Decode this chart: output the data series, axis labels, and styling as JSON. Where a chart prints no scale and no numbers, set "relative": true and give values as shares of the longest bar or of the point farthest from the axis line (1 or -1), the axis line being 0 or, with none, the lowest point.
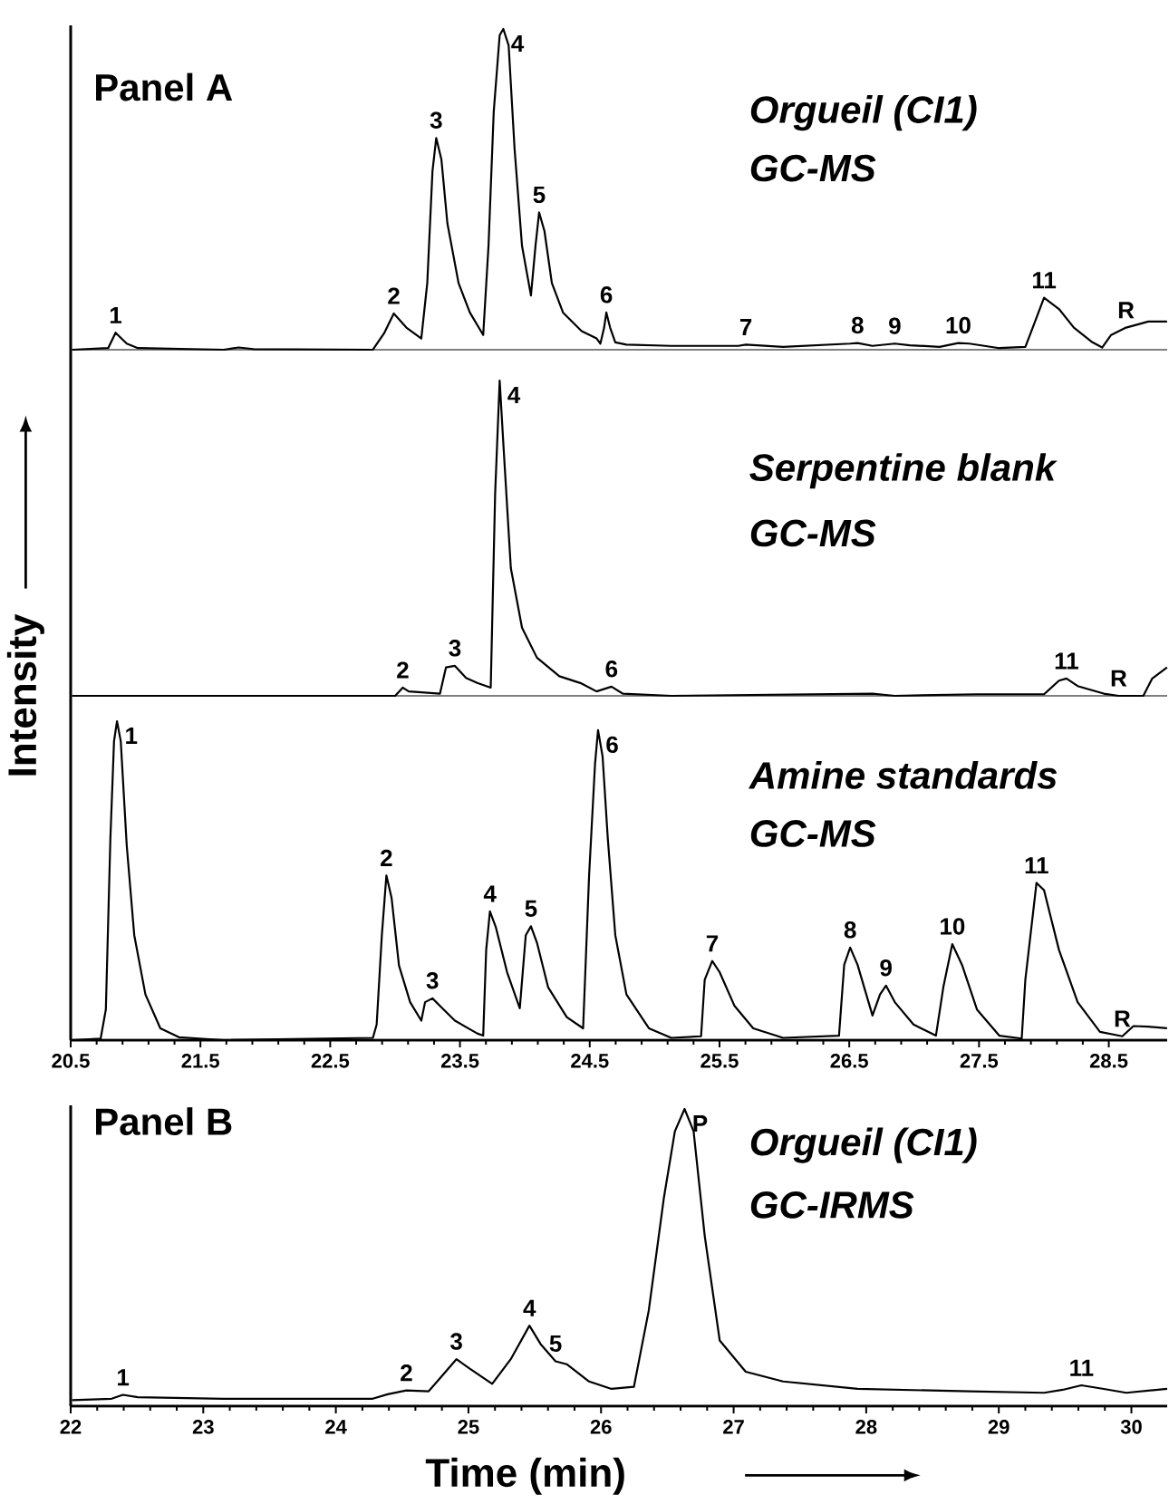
{
  "chart_data": [
    {
      "type": "line",
      "title": "Orgueil (CI1)",
      "subtitle": "GC-MS",
      "relative": true,
      "xlim": [
        20.5,
        28.95
      ],
      "tick_labels": false,
      "x": [
        20.513,
        20.789,
        20.846,
        20.932,
        21.018,
        21.679,
        21.794,
        21.909,
        22.829,
        22.915,
        22.99,
        23.087,
        23.202,
        23.248,
        23.288,
        23.317,
        23.357,
        23.403,
        23.489,
        23.576,
        23.679,
        23.72,
        23.76,
        23.806,
        23.834,
        23.875,
        23.921,
        23.978,
        24.047,
        24.082,
        24.11,
        24.151,
        24.208,
        24.294,
        24.438,
        24.553,
        24.582,
        24.611,
        24.628,
        24.657,
        24.697,
        24.783,
        25.128,
        25.645,
        25.703,
        25.99,
        26.507,
        26.564,
        26.679,
        26.851,
        26.966,
        27.196,
        27.34,
        27.426,
        27.656,
        27.857,
        27.914,
        28.001,
        28.116,
        28.231,
        28.374,
        28.449,
        28.518,
        28.633,
        28.805,
        28.949
      ],
      "series": [
        {
          "color": "#000000",
          "values": [
            0,
            0.005,
            0.053,
            0.019,
            0.005,
            0,
            0.007,
            0.002,
            0,
            0.051,
            0.113,
            0.069,
            0.035,
            0.208,
            0.556,
            0.66,
            0.593,
            0.394,
            0.208,
            0.116,
            0.046,
            0.324,
            0.741,
            0.981,
            1,
            0.949,
            0.625,
            0.324,
            0.169,
            0.324,
            0.428,
            0.37,
            0.208,
            0.116,
            0.058,
            0.035,
            0.019,
            0.069,
            0.116,
            0.069,
            0.023,
            0.016,
            0.012,
            0.012,
            0.016,
            0.009,
            0.019,
            0.021,
            0.012,
            0.019,
            0.014,
            0.009,
            0.021,
            0.019,
            0.005,
            0.009,
            0.069,
            0.162,
            0.127,
            0.069,
            0.023,
            0.007,
            0.046,
            0.069,
            0.088,
            0.088
          ]
        }
      ],
      "annotations": [
        "Panel A",
        {
          "text": "1",
          "x": 20.846,
          "y": 0.053
        },
        {
          "text": "2",
          "x": 22.99,
          "y": 0.113
        },
        {
          "text": "3",
          "x": 23.317,
          "y": 0.66
        },
        {
          "text": "4",
          "x": 23.834,
          "y": 1
        },
        {
          "text": "5",
          "x": 24.11,
          "y": 0.428
        },
        {
          "text": "6",
          "x": 24.628,
          "y": 0.116
        },
        {
          "text": "7",
          "x": 25.703,
          "y": 0.016
        },
        {
          "text": "8",
          "x": 26.564,
          "y": 0.021
        },
        {
          "text": "9",
          "x": 26.851,
          "y": 0.019
        },
        {
          "text": "10",
          "x": 27.34,
          "y": 0.021
        },
        {
          "text": "11",
          "x": 28.001,
          "y": 0.162
        },
        {
          "text": "R",
          "x": 28.633,
          "y": 0.069
        }
      ]
    },
    {
      "type": "line",
      "title": "Serpentine blank",
      "subtitle": "GC-MS",
      "ylabel": "Intensity",
      "relative": true,
      "xlim": [
        20.5,
        28.95
      ],
      "tick_labels": false,
      "x": [
        20.513,
        23.001,
        23.059,
        23.105,
        23.346,
        23.392,
        23.461,
        23.547,
        23.633,
        23.737,
        23.771,
        23.806,
        23.84,
        23.892,
        23.978,
        24.093,
        24.266,
        24.438,
        24.553,
        24.668,
        24.754,
        25.128,
        26.679,
        26.851,
        27.484,
        28.001,
        28.116,
        28.174,
        28.26,
        28.461,
        28.576,
        28.766,
        28.835,
        28.949
      ],
      "series": [
        {
          "color": "#000000",
          "values": [
            0,
            0,
            0.026,
            0.014,
            0.007,
            0.09,
            0.095,
            0.057,
            0.041,
            0.026,
            0.641,
            1,
            0.76,
            0.405,
            0.216,
            0.121,
            0.062,
            0.039,
            0.014,
            0.029,
            0.007,
            0,
            0.007,
            0,
            0.005,
            0.005,
            0.048,
            0.055,
            0.031,
            0.007,
            0,
            0,
            0.055,
            0.09
          ]
        }
      ],
      "annotations": [
        {
          "text": "2",
          "x": 23.059,
          "y": 0.026
        },
        {
          "text": "3",
          "x": 23.461,
          "y": 0.095
        },
        {
          "text": "4",
          "x": 23.806,
          "y": 1
        },
        {
          "text": "6",
          "x": 24.668,
          "y": 0.029
        },
        {
          "text": "11",
          "x": 28.174,
          "y": 0.055
        },
        {
          "text": "R",
          "x": 28.576,
          "y": 0
        }
      ]
    },
    {
      "type": "line",
      "title": "Amine standards",
      "subtitle": "GC-MS",
      "relative": true,
      "xlim": [
        20.5,
        28.95
      ],
      "tick_labels": "x",
      "xticks": [
        20.5,
        21.5,
        22.5,
        23.5,
        24.5,
        25.5,
        26.5,
        27.5,
        28.5
      ],
      "x": [
        20.513,
        20.731,
        20.771,
        20.806,
        20.834,
        20.857,
        20.886,
        20.932,
        20.99,
        21.076,
        21.191,
        21.334,
        21.679,
        22.829,
        22.858,
        22.898,
        22.933,
        22.973,
        23.03,
        23.116,
        23.202,
        23.231,
        23.288,
        23.346,
        23.461,
        23.633,
        23.679,
        23.702,
        23.731,
        23.777,
        23.863,
        23.961,
        24.007,
        24.047,
        24.093,
        24.179,
        24.323,
        24.449,
        24.495,
        24.541,
        24.564,
        24.599,
        24.639,
        24.697,
        24.783,
        24.956,
        25.128,
        25.358,
        25.386,
        25.444,
        25.501,
        25.616,
        25.76,
        25.99,
        26.421,
        26.461,
        26.507,
        26.564,
        26.679,
        26.737,
        26.783,
        26.851,
        26.995,
        27.168,
        27.225,
        27.294,
        27.369,
        27.484,
        27.656,
        27.829,
        27.857,
        27.943,
        28.001,
        28.116,
        28.26,
        28.432,
        28.604,
        28.69,
        28.805,
        28.949
      ],
      "series": [
        {
          "color": "#000000",
          "values": [
            0,
            0.005,
            0.096,
            0.633,
            0.937,
            1,
            0.937,
            0.61,
            0.329,
            0.143,
            0.037,
            0.009,
            0,
            0.007,
            0.049,
            0.329,
            0.516,
            0.446,
            0.234,
            0.119,
            0.061,
            0.119,
            0.131,
            0.107,
            0.061,
            0.021,
            0.014,
            0.283,
            0.404,
            0.353,
            0.213,
            0.1,
            0.329,
            0.357,
            0.306,
            0.166,
            0.072,
            0.037,
            0.516,
            0.867,
            0.972,
            0.89,
            0.633,
            0.329,
            0.143,
            0.037,
            0.007,
            0.012,
            0.189,
            0.248,
            0.213,
            0.107,
            0.037,
            0.007,
            0.014,
            0.236,
            0.29,
            0.236,
            0.077,
            0.143,
            0.171,
            0.119,
            0.049,
            0.014,
            0.166,
            0.301,
            0.236,
            0.096,
            0.014,
            0.005,
            0.189,
            0.493,
            0.47,
            0.283,
            0.119,
            0.026,
            0.012,
            0.044,
            0.042,
            0.037
          ]
        }
      ],
      "annotations": [
        {
          "text": "1",
          "x": 20.857,
          "y": 1
        },
        {
          "text": "2",
          "x": 22.933,
          "y": 0.516
        },
        {
          "text": "3",
          "x": 23.288,
          "y": 0.131
        },
        {
          "text": "4",
          "x": 23.731,
          "y": 0.404
        },
        {
          "text": "5",
          "x": 24.047,
          "y": 0.357
        },
        {
          "text": "6",
          "x": 24.564,
          "y": 0.972
        },
        {
          "text": "7",
          "x": 25.444,
          "y": 0.248
        },
        {
          "text": "8",
          "x": 26.507,
          "y": 0.29
        },
        {
          "text": "9",
          "x": 26.783,
          "y": 0.171
        },
        {
          "text": "10",
          "x": 27.294,
          "y": 0.301
        },
        {
          "text": "11",
          "x": 27.943,
          "y": 0.493
        },
        {
          "text": "R",
          "x": 28.604,
          "y": 0.012
        }
      ]
    },
    {
      "type": "line",
      "title": "Orgueil (CI1)",
      "subtitle": "GC-IRMS",
      "xlabel": "Time (min)",
      "relative": true,
      "xlim": [
        22,
        30.27
      ],
      "tick_labels": "x",
      "xticks": [
        22,
        23,
        24,
        25,
        26,
        27,
        28,
        29,
        30
      ],
      "x": [
        22.011,
        22.309,
        22.394,
        22.506,
        23.153,
        24.278,
        24.391,
        24.532,
        24.7,
        24.813,
        24.909,
        25.01,
        25.179,
        25.319,
        25.46,
        25.544,
        25.657,
        25.741,
        25.91,
        26.079,
        26.248,
        26.36,
        26.473,
        26.557,
        26.63,
        26.698,
        26.782,
        26.895,
        27.091,
        27.373,
        27.935,
        28.779,
        29.342,
        29.482,
        29.623,
        29.792,
        29.961,
        30.27
      ],
      "series": [
        {
          "color": "#000000",
          "values": [
            0.02,
            0.025,
            0.038,
            0.03,
            0.025,
            0.025,
            0.04,
            0.053,
            0.05,
            0.108,
            0.158,
            0.126,
            0.075,
            0.158,
            0.271,
            0.209,
            0.151,
            0.141,
            0.083,
            0.058,
            0.065,
            0.322,
            0.698,
            0.925,
            1,
            0.925,
            0.573,
            0.221,
            0.116,
            0.083,
            0.058,
            0.05,
            0.045,
            0.055,
            0.07,
            0.058,
            0.045,
            0.058
          ]
        }
      ],
      "annotations": [
        "Panel B",
        {
          "text": "1",
          "x": 22.394,
          "y": 0.038
        },
        {
          "text": "2",
          "x": 24.532,
          "y": 0.053
        },
        {
          "text": "3",
          "x": 24.909,
          "y": 0.158
        },
        {
          "text": "4",
          "x": 25.46,
          "y": 0.271
        },
        {
          "text": "5",
          "x": 25.657,
          "y": 0.151
        },
        {
          "text": "P",
          "x": 26.63,
          "y": 1
        },
        {
          "text": "11",
          "x": 29.623,
          "y": 0.07
        }
      ]
    }
  ]
}
